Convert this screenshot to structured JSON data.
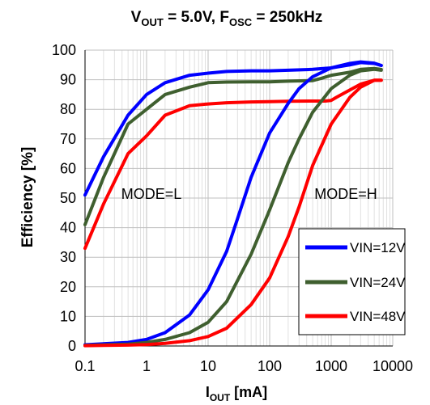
{
  "chart_data": {
    "type": "line",
    "title": {
      "main": "V",
      "sub1": "OUT",
      "mid": " = 5.0V, F",
      "sub2": "OSC",
      "tail": " = 250kHz"
    },
    "xlabel": {
      "main": "I",
      "sub": "OUT",
      "tail": " [mA]"
    },
    "ylabel": "Efficiency [%]",
    "x_scale": "log",
    "xlim": [
      0.1,
      10000
    ],
    "ylim": [
      0,
      100
    ],
    "x_ticks": [
      0.1,
      1,
      10,
      100,
      1000,
      10000
    ],
    "x_tick_labels": [
      "0.1",
      "1",
      "10",
      "100",
      "1000",
      "10000"
    ],
    "y_ticks": [
      0,
      10,
      20,
      30,
      40,
      50,
      60,
      70,
      80,
      90,
      100
    ],
    "y_tick_labels": [
      "0",
      "10",
      "20",
      "30",
      "40",
      "50",
      "60",
      "70",
      "80",
      "90",
      "100"
    ],
    "grid": true,
    "legend_position": "bottom-right",
    "annotations": [
      {
        "text": "MODE=L",
        "x": 0.8,
        "y": 47
      },
      {
        "text": "MODE=H",
        "x": 800,
        "y": 47
      }
    ],
    "series": [
      {
        "name": "VIN=12V",
        "color": "#0000ff",
        "mode": "L",
        "x": [
          0.1,
          0.2,
          0.5,
          1,
          2,
          5,
          10,
          20,
          50,
          100,
          200,
          500,
          1000,
          2000,
          3000,
          5000,
          6500
        ],
        "y": [
          51,
          64,
          78,
          85,
          89,
          91.5,
          92.2,
          92.8,
          93,
          93,
          93.2,
          93.5,
          94,
          95,
          95.8,
          95.5,
          94.8
        ]
      },
      {
        "name": "VIN=24V",
        "color": "#3f5f2f",
        "mode": "L",
        "x": [
          0.1,
          0.2,
          0.5,
          1,
          2,
          5,
          10,
          20,
          50,
          100,
          200,
          500,
          700,
          1000,
          2000,
          3000,
          5000,
          6500
        ],
        "y": [
          41,
          57,
          75,
          80,
          85,
          87.5,
          89,
          89.2,
          89.3,
          89.3,
          89.5,
          89.7,
          90.5,
          91.5,
          92.5,
          93.5,
          93.8,
          93.5
        ]
      },
      {
        "name": "VIN=48V",
        "color": "#ff0000",
        "mode": "L",
        "x": [
          0.1,
          0.2,
          0.5,
          1,
          2,
          5,
          10,
          20,
          50,
          100,
          200,
          500,
          800,
          1000,
          1200,
          2000,
          3000,
          5000,
          6500
        ],
        "y": [
          33,
          48,
          65,
          71,
          78,
          81.2,
          81.8,
          82.2,
          82.5,
          82.6,
          82.7,
          82.8,
          82.8,
          83,
          84,
          86.5,
          88.5,
          89.8,
          89.8
        ]
      },
      {
        "name": "VIN=12V",
        "color": "#0000ff",
        "mode": "H",
        "x": [
          0.1,
          0.5,
          1,
          2,
          5,
          10,
          20,
          30,
          50,
          100,
          200,
          300,
          500,
          1000,
          2000,
          3000,
          5000,
          6500
        ],
        "y": [
          0.4,
          1.2,
          2.2,
          4.5,
          10.5,
          19,
          32,
          43,
          57,
          72,
          82,
          87,
          91,
          94,
          95.5,
          96,
          95.6,
          94.8
        ]
      },
      {
        "name": "VIN=24V",
        "color": "#3f5f2f",
        "mode": "H",
        "x": [
          0.1,
          0.5,
          1,
          2,
          5,
          10,
          20,
          50,
          100,
          200,
          300,
          500,
          1000,
          2000,
          3000,
          5000,
          6500
        ],
        "y": [
          0.2,
          0.6,
          1.2,
          2.2,
          4.5,
          8,
          15,
          31,
          46,
          62,
          70,
          79,
          87,
          91.5,
          93,
          93.5,
          93.2
        ]
      },
      {
        "name": "VIN=48V",
        "color": "#ff0000",
        "mode": "H",
        "x": [
          0.1,
          0.5,
          1,
          2,
          5,
          10,
          20,
          50,
          100,
          200,
          300,
          500,
          1000,
          2000,
          3000,
          5000,
          6500
        ],
        "y": [
          0.1,
          0.3,
          0.5,
          0.9,
          1.8,
          3.2,
          6,
          14,
          23,
          37,
          47,
          61,
          75,
          84,
          87.5,
          89.8,
          89.8
        ]
      }
    ],
    "legend": [
      {
        "label": "VIN=12V",
        "color": "#0000ff"
      },
      {
        "label": "VIN=24V",
        "color": "#3f5f2f"
      },
      {
        "label": "VIN=48V",
        "color": "#ff0000"
      }
    ]
  }
}
